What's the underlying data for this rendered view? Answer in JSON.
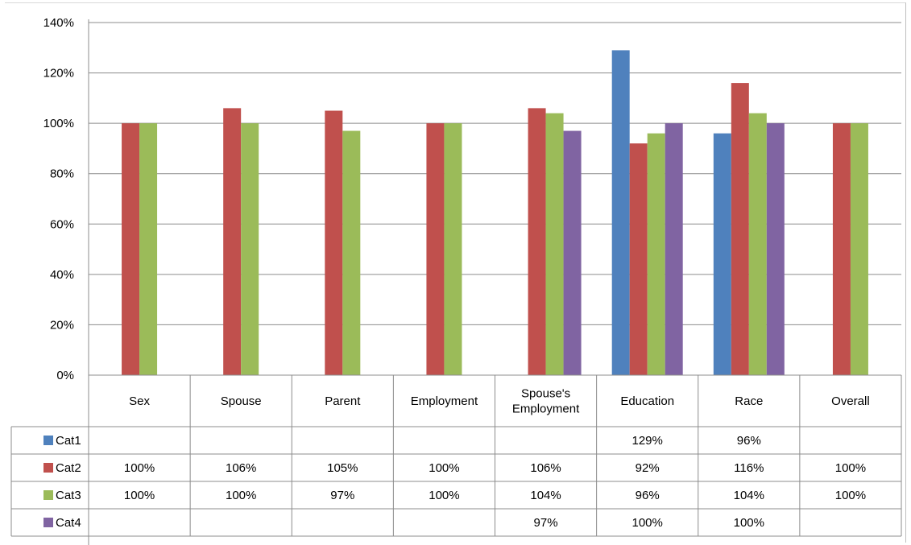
{
  "chart_data": {
    "type": "bar",
    "categories": [
      "Sex",
      "Spouse",
      "Parent",
      "Employment",
      "Spouse's Employment",
      "Education",
      "Race",
      "Overall"
    ],
    "category_lines": [
      [
        "Sex"
      ],
      [
        "Spouse"
      ],
      [
        "Parent"
      ],
      [
        "Employment"
      ],
      [
        "Spouse's",
        "Employment"
      ],
      [
        "Education"
      ],
      [
        "Race"
      ],
      [
        "Overall"
      ]
    ],
    "series": [
      {
        "name": "Cat1",
        "color": "#4F81BD",
        "values": [
          null,
          null,
          null,
          null,
          null,
          129,
          96,
          null
        ],
        "labels": [
          "",
          "",
          "",
          "",
          "",
          "129%",
          "96%",
          ""
        ]
      },
      {
        "name": "Cat2",
        "color": "#C0504D",
        "values": [
          100,
          106,
          105,
          100,
          106,
          92,
          116,
          100
        ],
        "labels": [
          "100%",
          "106%",
          "105%",
          "100%",
          "106%",
          "92%",
          "116%",
          "100%"
        ]
      },
      {
        "name": "Cat3",
        "color": "#9BBB59",
        "values": [
          100,
          100,
          97,
          100,
          104,
          96,
          104,
          100
        ],
        "labels": [
          "100%",
          "100%",
          "97%",
          "100%",
          "104%",
          "96%",
          "104%",
          "100%"
        ]
      },
      {
        "name": "Cat4",
        "color": "#8064A2",
        "values": [
          null,
          null,
          null,
          null,
          97,
          100,
          100,
          null
        ],
        "labels": [
          "",
          "",
          "",
          "",
          "97%",
          "100%",
          "100%",
          ""
        ]
      }
    ],
    "yticks": [
      "0%",
      "20%",
      "40%",
      "60%",
      "80%",
      "100%",
      "120%",
      "140%"
    ],
    "ylim": [
      0,
      140
    ],
    "ytick_step": 20,
    "grid": true,
    "legend": "data-table-left",
    "title": "",
    "xlabel": "",
    "ylabel": ""
  }
}
